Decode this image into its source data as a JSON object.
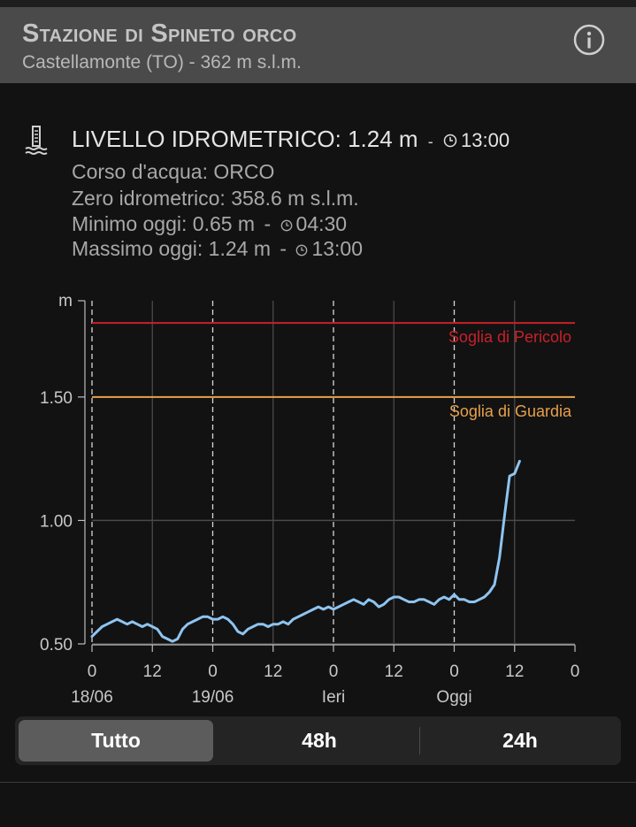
{
  "header": {
    "title": "Stazione di Spineto orco",
    "subtitle": "Castellamonte (TO) - 362 m s.l.m."
  },
  "reading": {
    "label": "LIVELLO IDROMETRICO: 1.24 m",
    "separator": "-",
    "time": "13:00"
  },
  "details": {
    "river": "Corso d'acqua: ORCO",
    "zero": "Zero idrometrico: 358.6 m s.l.m.",
    "min_label": "Minimo oggi: 0.65 m",
    "min_time": "04:30",
    "max_label": "Massimo oggi: 1.24 m",
    "max_time": "13:00",
    "separator": "-"
  },
  "tabs": [
    "Tutto",
    "48h",
    "24h"
  ],
  "active_tab": 0,
  "colors": {
    "danger": "#c8202a",
    "warning": "#e8a04a",
    "series": "#8ec4f0",
    "header_bg": "#4a4a4a"
  },
  "chart_data": {
    "type": "line",
    "y_unit_label": "m",
    "ylim": [
      0.5,
      1.89
    ],
    "yticks": [
      0.5,
      1.0,
      1.5
    ],
    "ytick_labels": [
      "0.50",
      "1.00",
      "1.50"
    ],
    "xlim": [
      0,
      96
    ],
    "xticks": [
      0,
      12,
      24,
      36,
      48,
      60,
      72,
      84,
      96
    ],
    "xtick_labels": [
      "0",
      "12",
      "0",
      "12",
      "0",
      "12",
      "0",
      "12",
      "0"
    ],
    "day_labels": [
      {
        "x": 0,
        "label": "18/06"
      },
      {
        "x": 24,
        "label": "19/06"
      },
      {
        "x": 48,
        "label": "Ieri"
      },
      {
        "x": 72,
        "label": "Oggi"
      }
    ],
    "day_dividers": [
      0,
      24,
      48,
      72
    ],
    "thresholds": [
      {
        "name": "Soglia di Pericolo",
        "value": 1.8,
        "color": "#c8202a"
      },
      {
        "name": "Soglia di Guardia",
        "value": 1.5,
        "color": "#e8a04a"
      }
    ],
    "series": [
      {
        "x": [
          0,
          1,
          2,
          3,
          4,
          5,
          6,
          7,
          8,
          9,
          10,
          11,
          12,
          13,
          14,
          15,
          16,
          17,
          18,
          19,
          20,
          21,
          22,
          23,
          24,
          25,
          26,
          27,
          28,
          29,
          30,
          31,
          32,
          33,
          34,
          35,
          36,
          37,
          38,
          39,
          40,
          41,
          42,
          43,
          44,
          45,
          46,
          47,
          48,
          49,
          50,
          51,
          52,
          53,
          54,
          55,
          56,
          57,
          58,
          59,
          60,
          61,
          62,
          63,
          64,
          65,
          66,
          67,
          68,
          69,
          70,
          71,
          72,
          73,
          74,
          75,
          76,
          77,
          78,
          79,
          80,
          81,
          82,
          83,
          84,
          85
        ],
        "values": [
          0.53,
          0.55,
          0.57,
          0.58,
          0.59,
          0.6,
          0.59,
          0.58,
          0.59,
          0.58,
          0.57,
          0.58,
          0.57,
          0.56,
          0.53,
          0.52,
          0.51,
          0.52,
          0.56,
          0.58,
          0.59,
          0.6,
          0.61,
          0.61,
          0.6,
          0.6,
          0.61,
          0.6,
          0.58,
          0.55,
          0.54,
          0.56,
          0.57,
          0.58,
          0.58,
          0.57,
          0.58,
          0.58,
          0.59,
          0.58,
          0.6,
          0.61,
          0.62,
          0.63,
          0.64,
          0.65,
          0.64,
          0.65,
          0.64,
          0.65,
          0.66,
          0.67,
          0.68,
          0.67,
          0.66,
          0.68,
          0.67,
          0.65,
          0.66,
          0.68,
          0.69,
          0.69,
          0.68,
          0.67,
          0.67,
          0.68,
          0.68,
          0.67,
          0.66,
          0.68,
          0.69,
          0.68,
          0.7,
          0.68,
          0.68,
          0.67,
          0.67,
          0.68,
          0.69,
          0.71,
          0.74,
          0.85,
          1.02,
          1.18,
          1.19,
          1.24
        ]
      }
    ]
  }
}
